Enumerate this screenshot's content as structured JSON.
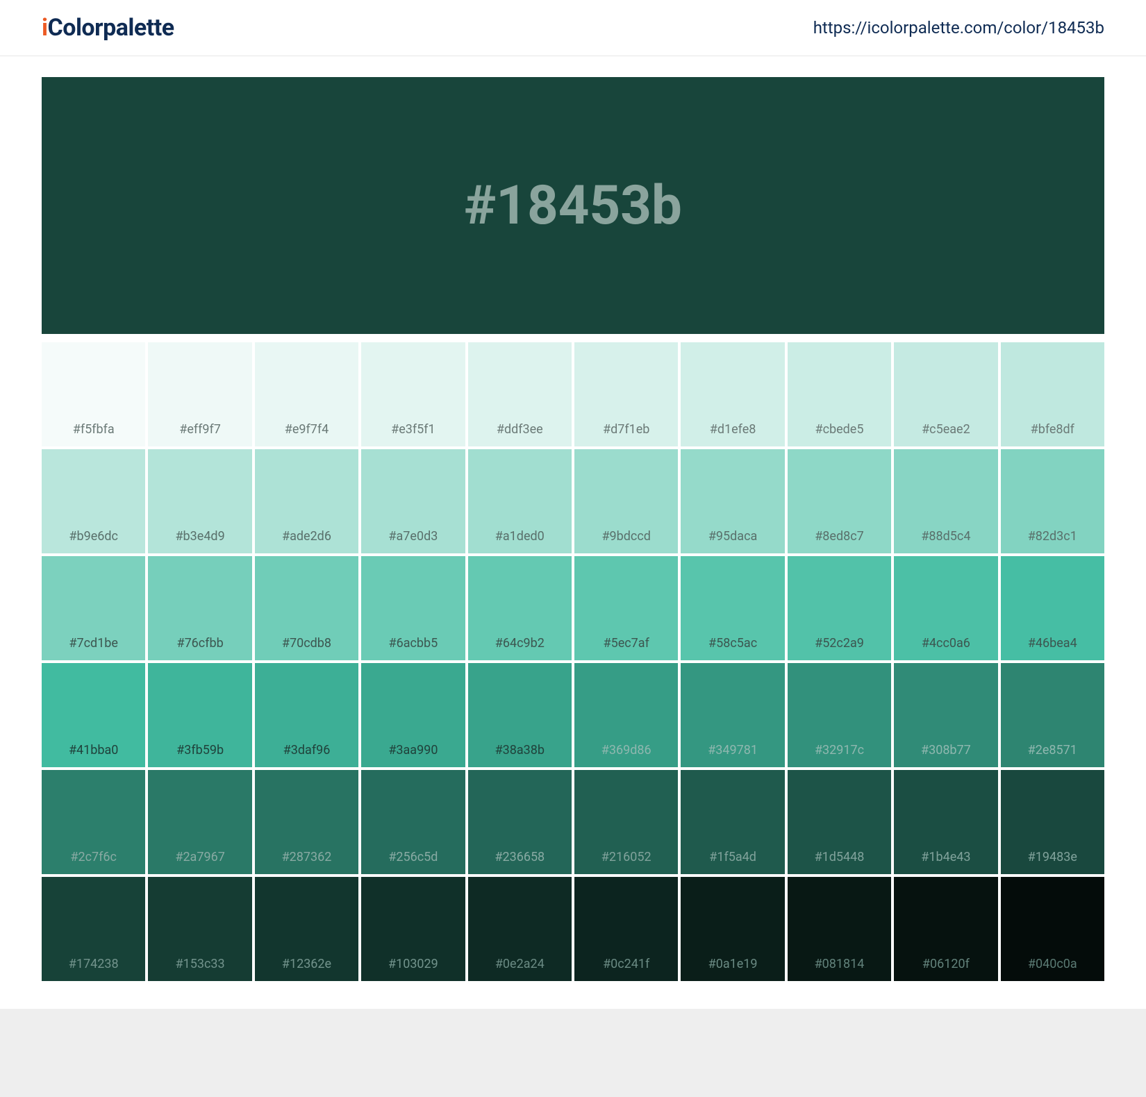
{
  "header": {
    "logo_i": "i",
    "logo_rest": "Colorpalette",
    "url": "https://icolorpalette.com/color/18453b"
  },
  "hero": {
    "hex": "#18453b",
    "bg": "#18453b",
    "text_color": "#8aa49d"
  },
  "swatch_label_light": "#6b7a77",
  "swatch_label_mid": "#3d4d4a",
  "swatch_label_dark": "#7d8d8a",
  "swatches": [
    {
      "hex": "#f5fbfa",
      "label_color": "#6b7a77"
    },
    {
      "hex": "#eff9f7",
      "label_color": "#6b7a77"
    },
    {
      "hex": "#e9f7f4",
      "label_color": "#6b7a77"
    },
    {
      "hex": "#e3f5f1",
      "label_color": "#6b7a77"
    },
    {
      "hex": "#ddf3ee",
      "label_color": "#6b7a77"
    },
    {
      "hex": "#d7f1eb",
      "label_color": "#6b7a77"
    },
    {
      "hex": "#d1efe8",
      "label_color": "#6b7a77"
    },
    {
      "hex": "#cbede5",
      "label_color": "#6b7a77"
    },
    {
      "hex": "#c5eae2",
      "label_color": "#6b7a77"
    },
    {
      "hex": "#bfe8df",
      "label_color": "#6b7a77"
    },
    {
      "hex": "#b9e6dc",
      "label_color": "#59706b"
    },
    {
      "hex": "#b3e4d9",
      "label_color": "#59706b"
    },
    {
      "hex": "#ade2d6",
      "label_color": "#59706b"
    },
    {
      "hex": "#a7e0d3",
      "label_color": "#59706b"
    },
    {
      "hex": "#a1ded0",
      "label_color": "#59706b"
    },
    {
      "hex": "#9bdccd",
      "label_color": "#59706b"
    },
    {
      "hex": "#95daca",
      "label_color": "#59706b"
    },
    {
      "hex": "#8ed8c7",
      "label_color": "#59706b"
    },
    {
      "hex": "#88d5c4",
      "label_color": "#59706b"
    },
    {
      "hex": "#82d3c1",
      "label_color": "#59706b"
    },
    {
      "hex": "#7cd1be",
      "label_color": "#3c5650"
    },
    {
      "hex": "#76cfbb",
      "label_color": "#3c5650"
    },
    {
      "hex": "#70cdb8",
      "label_color": "#3c5650"
    },
    {
      "hex": "#6acbb5",
      "label_color": "#3c5650"
    },
    {
      "hex": "#64c9b2",
      "label_color": "#3c5650"
    },
    {
      "hex": "#5ec7af",
      "label_color": "#3c5650"
    },
    {
      "hex": "#58c5ac",
      "label_color": "#3c5650"
    },
    {
      "hex": "#52c2a9",
      "label_color": "#3c5650"
    },
    {
      "hex": "#4cc0a6",
      "label_color": "#3c5650"
    },
    {
      "hex": "#46bea4",
      "label_color": "#3c5650"
    },
    {
      "hex": "#41bba0",
      "label_color": "#20423b"
    },
    {
      "hex": "#3fb59b",
      "label_color": "#20423b"
    },
    {
      "hex": "#3daf96",
      "label_color": "#20423b"
    },
    {
      "hex": "#3aa990",
      "label_color": "#20423b"
    },
    {
      "hex": "#38a38b",
      "label_color": "#20423b"
    },
    {
      "hex": "#369d86",
      "label_color": "#8fb7af"
    },
    {
      "hex": "#349781",
      "label_color": "#8fb7af"
    },
    {
      "hex": "#32917c",
      "label_color": "#8fb7af"
    },
    {
      "hex": "#308b77",
      "label_color": "#8fb7af"
    },
    {
      "hex": "#2e8571",
      "label_color": "#8fb7af"
    },
    {
      "hex": "#2c7f6c",
      "label_color": "#88aaa3"
    },
    {
      "hex": "#2a7967",
      "label_color": "#88aaa3"
    },
    {
      "hex": "#287362",
      "label_color": "#88aaa3"
    },
    {
      "hex": "#256c5d",
      "label_color": "#88aaa3"
    },
    {
      "hex": "#236658",
      "label_color": "#88aaa3"
    },
    {
      "hex": "#216052",
      "label_color": "#80a29b"
    },
    {
      "hex": "#1f5a4d",
      "label_color": "#80a29b"
    },
    {
      "hex": "#1d5448",
      "label_color": "#80a29b"
    },
    {
      "hex": "#1b4e43",
      "label_color": "#80a29b"
    },
    {
      "hex": "#19483e",
      "label_color": "#80a29b"
    },
    {
      "hex": "#174238",
      "label_color": "#72938c"
    },
    {
      "hex": "#153c33",
      "label_color": "#72938c"
    },
    {
      "hex": "#12362e",
      "label_color": "#72938c"
    },
    {
      "hex": "#103029",
      "label_color": "#72938c"
    },
    {
      "hex": "#0e2a24",
      "label_color": "#6a8a83"
    },
    {
      "hex": "#0c241f",
      "label_color": "#6a8a83"
    },
    {
      "hex": "#0a1e19",
      "label_color": "#6a8a83"
    },
    {
      "hex": "#081814",
      "label_color": "#62827b"
    },
    {
      "hex": "#06120f",
      "label_color": "#62827b"
    },
    {
      "hex": "#040c0a",
      "label_color": "#5a7a73"
    }
  ]
}
